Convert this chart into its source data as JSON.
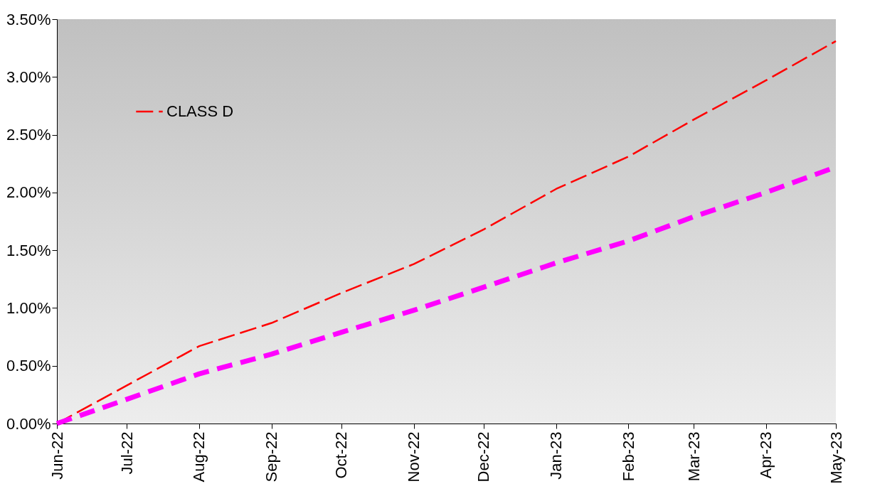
{
  "chart_data": {
    "type": "line",
    "x": [
      "2022-06",
      "2022-07",
      "2022-08",
      "2022-09",
      "2022-10",
      "2022-11",
      "2022-12",
      "2023-01",
      "2023-02",
      "2023-03",
      "2023-04",
      "2023-05"
    ],
    "series": [
      {
        "name": "CLASS D",
        "color": "#ff0000",
        "values": [
          0,
          0.33,
          0.67,
          0.87,
          1.13,
          1.38,
          1.68,
          2.03,
          2.31,
          2.63,
          2.97,
          3.31
        ]
      },
      {
        "color": "#ff00ff",
        "values": [
          0,
          0.21,
          0.43,
          0.6,
          0.79,
          0.98,
          1.18,
          1.39,
          1.58,
          1.79,
          2.0,
          2.22
        ]
      }
    ],
    "xlim": [
      "2022-06",
      "2023-05"
    ],
    "xticks": [
      {
        "value": "2022-06",
        "label": "Jun-22"
      },
      {
        "value": "2022-07",
        "label": "Jul-22"
      },
      {
        "value": "2022-08",
        "label": "Aug-22"
      },
      {
        "value": "2022-09",
        "label": "Sep-22"
      },
      {
        "value": "2022-10",
        "label": "Oct-22"
      },
      {
        "value": "2022-11",
        "label": "Nov-22"
      },
      {
        "value": "2022-12",
        "label": "Dec-22"
      },
      {
        "value": "2023-01",
        "label": "Jan-23"
      },
      {
        "value": "2023-02",
        "label": "Feb-23"
      },
      {
        "value": "2023-03",
        "label": "Mar-23"
      },
      {
        "value": "2023-04",
        "label": "Apr-23"
      },
      {
        "value": "2023-05",
        "label": "May-23"
      }
    ],
    "ylim": [
      0,
      3.5
    ],
    "yticks": [
      {
        "value": 0,
        "label": "0.00%"
      },
      {
        "value": 0.5,
        "label": "0.50%"
      },
      {
        "value": 1,
        "label": "1.00%"
      },
      {
        "value": 1.5,
        "label": "1.50%"
      },
      {
        "value": 2,
        "label": "2.00%"
      },
      {
        "value": 2.5,
        "label": "2.50%"
      },
      {
        "value": 3,
        "label": "3.00%"
      },
      {
        "value": 3.5,
        "label": "3.50%"
      }
    ],
    "grid": false,
    "legend": "top left",
    "line_style": "dashed",
    "marker": "none"
  }
}
